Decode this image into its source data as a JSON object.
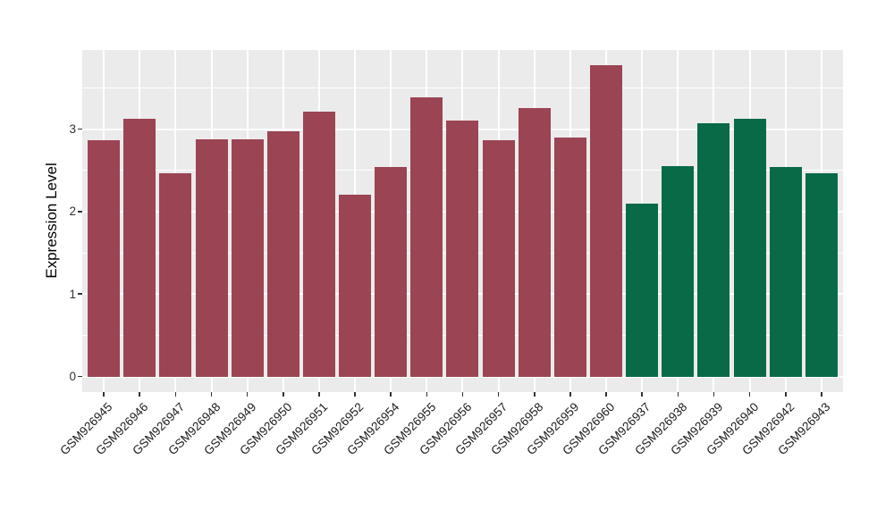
{
  "chart_data": {
    "type": "bar",
    "title": "",
    "ylabel": "Expression Level",
    "xlabel": "",
    "categories": [
      "GSM926945",
      "GSM926946",
      "GSM926947",
      "GSM926948",
      "GSM926949",
      "GSM926950",
      "GSM926951",
      "GSM926952",
      "GSM926954",
      "GSM926955",
      "GSM926956",
      "GSM926957",
      "GSM926958",
      "GSM926959",
      "GSM926960",
      "GSM926937",
      "GSM926938",
      "GSM926939",
      "GSM926940",
      "GSM926942",
      "GSM926943"
    ],
    "values": [
      2.87,
      3.13,
      2.46,
      2.88,
      2.88,
      2.97,
      3.21,
      2.21,
      2.54,
      3.39,
      3.1,
      2.86,
      3.25,
      2.9,
      3.77,
      2.1,
      2.55,
      3.07,
      3.12,
      2.54,
      2.46
    ],
    "groups": [
      "group1",
      "group1",
      "group1",
      "group1",
      "group1",
      "group1",
      "group1",
      "group1",
      "group1",
      "group1",
      "group1",
      "group1",
      "group1",
      "group1",
      "group1",
      "group2",
      "group2",
      "group2",
      "group2",
      "group2",
      "group2"
    ],
    "group_colors": {
      "group1": "#9B4453",
      "group2": "#086A46"
    },
    "yticks": [
      0,
      1,
      2,
      3
    ],
    "minor_yticks": [
      0.5,
      1.5,
      2.5,
      3.5
    ],
    "ylim": [
      0,
      3.96
    ],
    "grid": "major-and-minor-white",
    "legend_position": "none",
    "colors": {
      "panel_bg": "#EBEBEB",
      "grid": "#FFFFFF",
      "tick_mark": "#333333",
      "tick_text": "#333333",
      "axis_title_text": "#000000"
    }
  }
}
